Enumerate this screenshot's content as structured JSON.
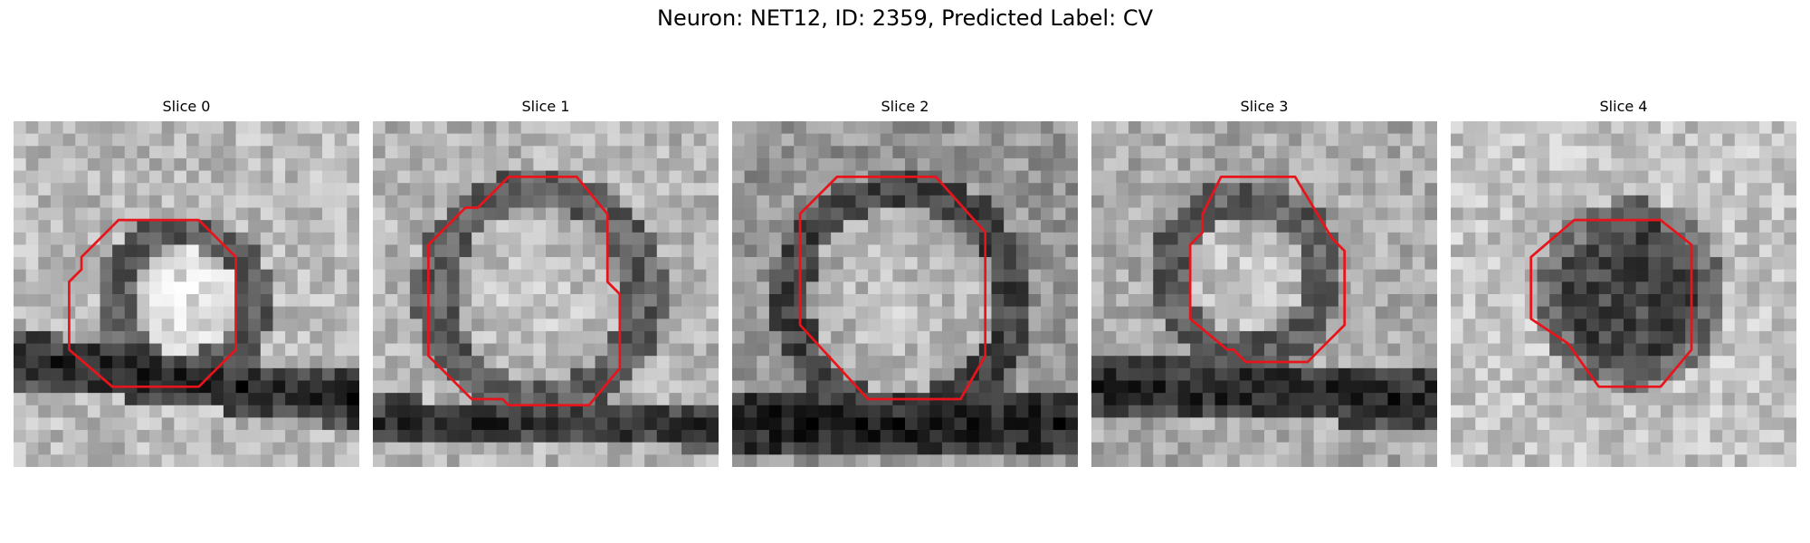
{
  "figure": {
    "title": "Neuron: NET12, ID: 2359, Predicted Label: CV"
  },
  "panels": [
    {
      "title": "Slice 0"
    },
    {
      "title": "Slice 1"
    },
    {
      "title": "Slice 2"
    },
    {
      "title": "Slice 3"
    },
    {
      "title": "Slice 4"
    }
  ],
  "colors": {
    "contour": "#e8141b"
  }
}
